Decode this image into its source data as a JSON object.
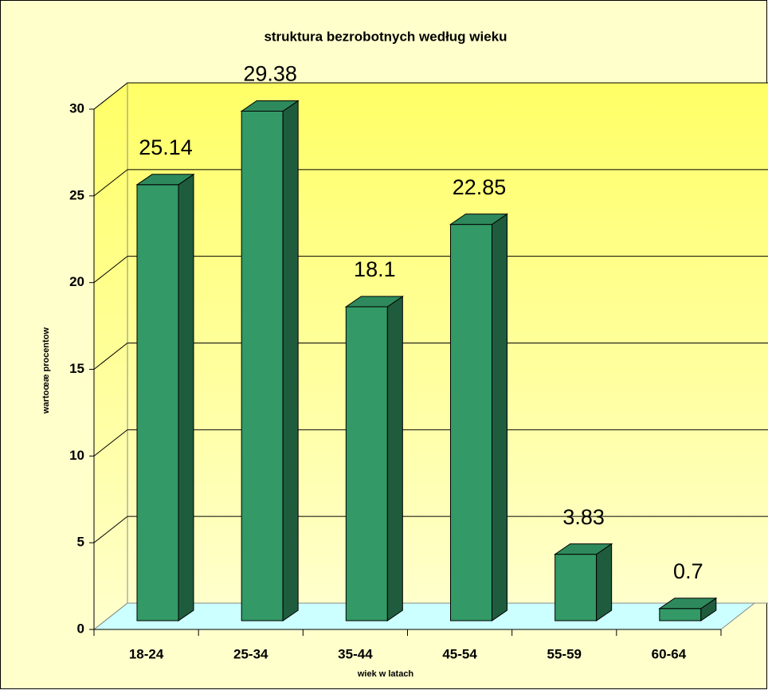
{
  "chart_data": {
    "type": "bar3d",
    "title": "struktura bezrobotnych według wieku",
    "xlabel": "wiek w latach",
    "ylabel": "wartoœæ procentow",
    "categories": [
      "18-24",
      "25-34",
      "35-44",
      "45-54",
      "55-59",
      "60-64"
    ],
    "values": [
      25.14,
      29.38,
      18.1,
      22.85,
      3.83,
      0.7
    ],
    "color": "#339966",
    "ylim": [
      0,
      30
    ],
    "yticks": [
      0,
      5,
      10,
      15,
      20,
      25,
      30
    ],
    "grid": true
  }
}
